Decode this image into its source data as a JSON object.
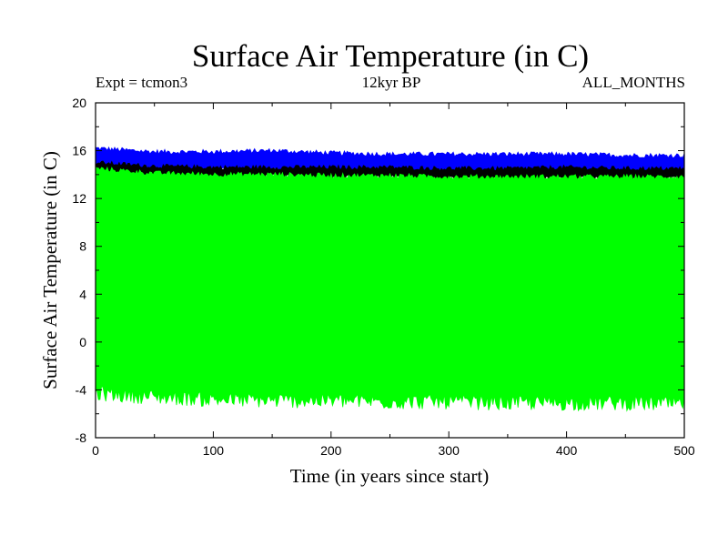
{
  "header": {
    "title": "Surface Air Temperature (in C)",
    "left": "Expt = tcmon3",
    "center": "12kyr BP",
    "right": "ALL_MONTHS"
  },
  "chart_data": {
    "type": "area",
    "title": "Surface Air Temperature (in C)",
    "xlabel": "Time (in years since start)",
    "ylabel": "Surface Air Temperature (in C)",
    "xlim": [
      0,
      500
    ],
    "ylim": [
      -8,
      20
    ],
    "xticks": [
      0,
      100,
      200,
      300,
      400,
      500
    ],
    "yticks": [
      -8,
      -4,
      0,
      4,
      8,
      12,
      16,
      20
    ],
    "grid": false,
    "series": [
      {
        "color": "#0000ff",
        "x": [
          0,
          50,
          100,
          150,
          200,
          250,
          300,
          350,
          400,
          450,
          500
        ],
        "low": [
          14.6,
          14.4,
          14.4,
          14.4,
          14.3,
          14.3,
          14.3,
          14.3,
          14.2,
          14.2,
          14.2
        ],
        "high": [
          16.2,
          15.9,
          15.9,
          16.0,
          15.8,
          15.7,
          15.7,
          15.7,
          15.7,
          15.6,
          15.6
        ]
      },
      {
        "color": "#000000",
        "x": [
          0,
          50,
          100,
          150,
          200,
          250,
          300,
          350,
          400,
          450,
          500
        ],
        "low": [
          14.2,
          13.8,
          13.8,
          13.9,
          13.8,
          13.8,
          13.7,
          13.7,
          13.7,
          13.7,
          13.7
        ],
        "high": [
          15.0,
          14.7,
          14.6,
          14.6,
          14.6,
          14.6,
          14.5,
          14.5,
          14.6,
          14.5,
          14.5
        ]
      },
      {
        "color": "#00ff00",
        "x": [
          0,
          50,
          100,
          150,
          200,
          250,
          300,
          350,
          400,
          450,
          500
        ],
        "low": [
          -4.3,
          -4.6,
          -4.8,
          -4.9,
          -4.9,
          -5.0,
          -5.0,
          -5.1,
          -5.1,
          -5.1,
          -5.2
        ],
        "high": [
          14.5,
          14.1,
          14.0,
          14.0,
          13.9,
          13.9,
          13.8,
          13.8,
          13.8,
          13.8,
          13.8
        ]
      }
    ]
  }
}
